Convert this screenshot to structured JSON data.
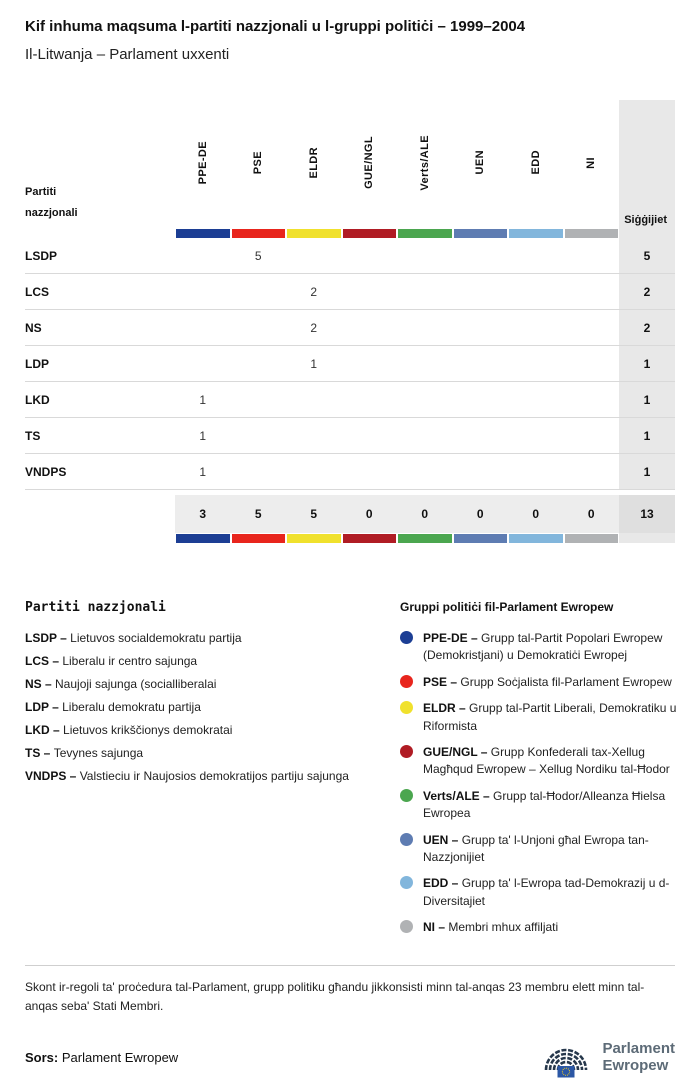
{
  "page": {
    "title": "Kif inhuma maqsuma l-partiti nazzjonali u l-gruppi politiċi – 1999–2004",
    "subtitle": "Il-Litwanja – Parlament uxxenti"
  },
  "chart_data": {
    "type": "table",
    "title": "Kif inhuma maqsuma l-partiti nazzjonali u l-gruppi politiċi – 1999–2004",
    "subtitle": "Il-Litwanja – Parlament uxxenti",
    "corner_label": "Partiti nazzjonali",
    "seats_label": "Siġġijiet",
    "groups": [
      {
        "name": "PPE-DE",
        "color": "#1C3E94"
      },
      {
        "name": "PSE",
        "color": "#E8251D"
      },
      {
        "name": "ELDR",
        "color": "#F0E12D"
      },
      {
        "name": "GUE/NGL",
        "color": "#B01C24"
      },
      {
        "name": "Verts/ALE",
        "color": "#4BA64F"
      },
      {
        "name": "UEN",
        "color": "#5E7CB2"
      },
      {
        "name": "EDD",
        "color": "#82B6DC"
      },
      {
        "name": "NI",
        "color": "#B0B2B4"
      }
    ],
    "rows": [
      {
        "party": "LSDP",
        "values": [
          "",
          "5",
          "",
          "",
          "",
          "",
          "",
          ""
        ],
        "total": "5"
      },
      {
        "party": "LCS",
        "values": [
          "",
          "",
          "2",
          "",
          "",
          "",
          "",
          ""
        ],
        "total": "2"
      },
      {
        "party": "NS",
        "values": [
          "",
          "",
          "2",
          "",
          "",
          "",
          "",
          ""
        ],
        "total": "2"
      },
      {
        "party": "LDP",
        "values": [
          "",
          "",
          "1",
          "",
          "",
          "",
          "",
          ""
        ],
        "total": "1"
      },
      {
        "party": "LKD",
        "values": [
          "1",
          "",
          "",
          "",
          "",
          "",
          "",
          ""
        ],
        "total": "1"
      },
      {
        "party": "TS",
        "values": [
          "1",
          "",
          "",
          "",
          "",
          "",
          "",
          ""
        ],
        "total": "1"
      },
      {
        "party": "VNDPS",
        "values": [
          "1",
          "",
          "",
          "",
          "",
          "",
          "",
          ""
        ],
        "total": "1"
      }
    ],
    "totals": {
      "values": [
        "3",
        "5",
        "5",
        "0",
        "0",
        "0",
        "0",
        "0"
      ],
      "total": "13"
    }
  },
  "legend_parties": {
    "title": "Partiti nazzjonali",
    "items": [
      {
        "abbr": "LSDP",
        "name": "Lietuvos socialdemokratu partija"
      },
      {
        "abbr": "LCS",
        "name": "Liberalu ir centro sajunga"
      },
      {
        "abbr": "NS",
        "name": "Naujoji sajunga (socialliberalai"
      },
      {
        "abbr": "LDP",
        "name": "Liberalu demokratu partija"
      },
      {
        "abbr": "LKD",
        "name": "Lietuvos krikščionys demokratai"
      },
      {
        "abbr": "TS",
        "name": "Tevynes sajunga"
      },
      {
        "abbr": "VNDPS",
        "name": "Valstieciu ir Naujosios demokratijos partiju sajunga"
      }
    ]
  },
  "legend_groups": {
    "title": "Gruppi politiċi fil-Parlament Ewropew",
    "items": [
      {
        "abbr": "PPE-DE",
        "name": "Grupp tal-Partit Popolari Ewropew (Demokristjani) u Demokratiċi Ewropej",
        "color": "#1C3E94"
      },
      {
        "abbr": "PSE",
        "name": "Grupp Soċjalista fil-Parlament Ewropew",
        "color": "#E8251D"
      },
      {
        "abbr": "ELDR",
        "name": "Grupp tal-Partit Liberali, Demokratiku u Riformista",
        "color": "#F0E12D"
      },
      {
        "abbr": "GUE/NGL",
        "name": "Grupp Konfederali tax-Xellug Magħqud Ewropew – Xellug Nordiku tal-Ħodor",
        "color": "#B01C24"
      },
      {
        "abbr": "Verts/ALE",
        "name": "Grupp tal-Ħodor/Alleanza Ħielsa Ewropea",
        "color": "#4BA64F"
      },
      {
        "abbr": "UEN",
        "name": "Grupp ta' l-Unjoni għal Ewropa tan-Nazzjonijiet",
        "color": "#5E7CB2"
      },
      {
        "abbr": "EDD",
        "name": "Grupp ta' l-Ewropa tad-Demokrazij u d-Diversitajiet",
        "color": "#82B6DC"
      },
      {
        "abbr": "NI",
        "name": "Membri mhux affiljati",
        "color": "#B0B2B4"
      }
    ]
  },
  "footer": {
    "note": "Skont ir-regoli ta' proċedura tal-Parlament, grupp politiku għandu jikkonsisti minn tal-anqas 23 membru elett minn tal-anqas seba' Stati Membri.",
    "source_label": "Sors:",
    "source_value": "Parlament Ewropew",
    "logo_line1": "Parlament",
    "logo_line2": "Ewropew"
  }
}
